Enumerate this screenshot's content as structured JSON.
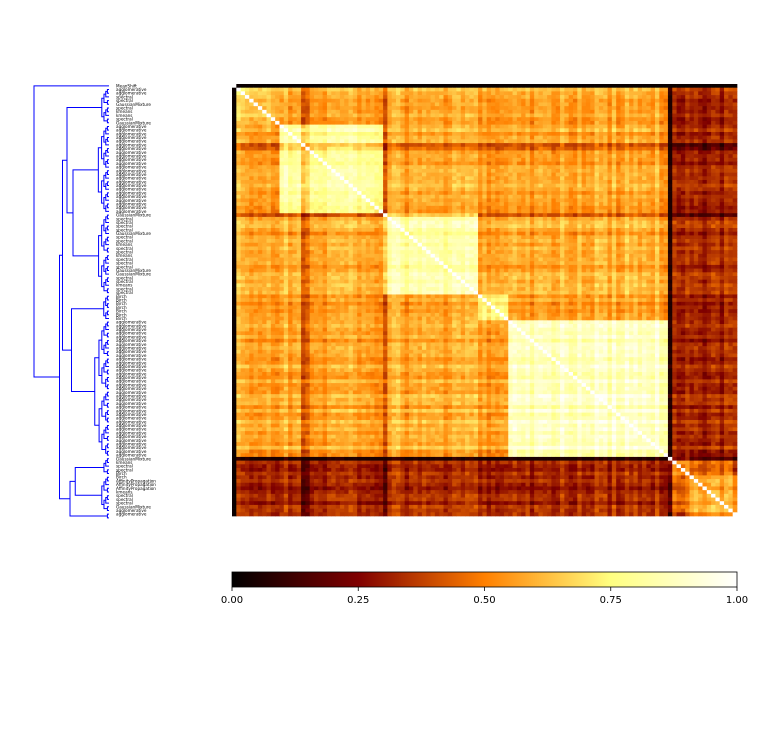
{
  "chart_data": {
    "type": "heatmap",
    "title": "",
    "xlabel": "",
    "ylabel": "",
    "colormap": "afmhot",
    "value_range": [
      0.0,
      1.0
    ],
    "colorbar": {
      "orientation": "horizontal",
      "ticks": [
        0.0,
        0.25,
        0.5,
        0.75,
        1.0
      ],
      "tick_labels": [
        "0.00",
        "0.25",
        "0.50",
        "0.75",
        "1.00"
      ]
    },
    "dendrogram": {
      "side": "left",
      "color": "#0000ff"
    },
    "row_labels": [
      "MeanShift",
      "agglomerative",
      "agglomerative",
      "spectral",
      "spectral",
      "GaussianMixture",
      "spectral",
      "kmeans",
      "kmeans",
      "spectral",
      "GaussianMixture",
      "agglomerative",
      "agglomerative",
      "agglomerative",
      "agglomerative",
      "agglomerative",
      "agglomerative",
      "agglomerative",
      "agglomerative",
      "agglomerative",
      "agglomerative",
      "agglomerative",
      "agglomerative",
      "agglomerative",
      "agglomerative",
      "agglomerative",
      "agglomerative",
      "agglomerative",
      "agglomerative",
      "agglomerative",
      "agglomerative",
      "agglomerative",
      "agglomerative",
      "agglomerative",
      "agglomerative",
      "GaussianMixture",
      "spectral",
      "spectral",
      "spectral",
      "spectral",
      "GaussianMixture",
      "spectral",
      "spectral",
      "kmeans",
      "spectral",
      "spectral",
      "kmeans",
      "spectral",
      "spectral",
      "spectral",
      "GaussianMixture",
      "GaussianMixture",
      "spectral",
      "spectral",
      "kmeans",
      "spectral",
      "spectral",
      "Birch",
      "Birch",
      "Birch",
      "Birch",
      "Birch",
      "Birch",
      "Birch",
      "agglomerative",
      "agglomerative",
      "agglomerative",
      "agglomerative",
      "agglomerative",
      "agglomerative",
      "agglomerative",
      "agglomerative",
      "agglomerative",
      "agglomerative",
      "agglomerative",
      "agglomerative",
      "agglomerative",
      "agglomerative",
      "agglomerative",
      "agglomerative",
      "agglomerative",
      "agglomerative",
      "agglomerative",
      "agglomerative",
      "agglomerative",
      "agglomerative",
      "agglomerative",
      "agglomerative",
      "agglomerative",
      "agglomerative",
      "agglomerative",
      "agglomerative",
      "agglomerative",
      "agglomerative",
      "agglomerative",
      "agglomerative",
      "agglomerative",
      "agglomerative",
      "agglomerative",
      "agglomerative",
      "agglomerative",
      "GaussianMixture",
      "kmeans",
      "spectral",
      "spectral",
      "Birch",
      "Birch",
      "AffinityPropagation",
      "AffinityPropagation",
      "AffinityPropagation",
      "kmeans",
      "spectral",
      "spectral",
      "spectral",
      "GaussianMixture",
      "agglomerative",
      "agglomerative"
    ]
  }
}
